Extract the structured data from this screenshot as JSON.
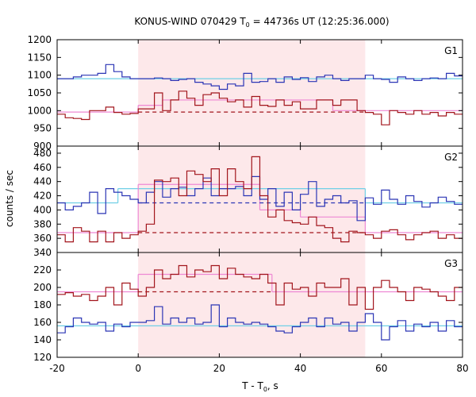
{
  "chart_data": {
    "type": "line",
    "title": "KONUS-WIND 070429 T",
    "title_sub": "0",
    "title_rest": " = 44736s UT (12:25:36.000)",
    "xlabel_main": "T - T",
    "xlabel_sub": "0",
    "xlabel_rest": ", s",
    "ylabel": "counts / sec",
    "xlim": [
      -20,
      80
    ],
    "x_ticks": [
      "-20",
      "0",
      "20",
      "40",
      "60",
      "80"
    ],
    "x_tick_values": [
      -20,
      0,
      20,
      40,
      60,
      80
    ],
    "shaded_interval": [
      0,
      56
    ],
    "colors": {
      "shade": "#fde8ea",
      "blue": "#2b35b5",
      "darkred": "#a2151c",
      "cyan": "#6fcfe6",
      "pink": "#ee88d4"
    },
    "panels": [
      {
        "label": "G1",
        "ylim": [
          900,
          1200
        ],
        "y_ticks": [
          900,
          950,
          1000,
          1050,
          1100,
          1150,
          1200
        ],
        "y_tick_labels": [
          "900",
          "950",
          "1000",
          "1050",
          "1100",
          "1150",
          "1200"
        ],
        "series": [
          {
            "color": "blue",
            "step_x0": -20,
            "step_dx": 2,
            "values": [
              1090,
              1090,
              1095,
              1100,
              1100,
              1105,
              1130,
              1110,
              1095,
              1090,
              1090,
              1090,
              1092,
              1090,
              1085,
              1088,
              1090,
              1080,
              1075,
              1070,
              1060,
              1075,
              1070,
              1105,
              1080,
              1082,
              1090,
              1080,
              1095,
              1088,
              1093,
              1082,
              1095,
              1100,
              1090,
              1085,
              1090,
              1090,
              1100,
              1090,
              1088,
              1080,
              1095,
              1090,
              1085,
              1090,
              1092,
              1090,
              1105,
              1098
            ]
          },
          {
            "color": "darkred",
            "step_x0": -20,
            "step_dx": 2,
            "values": [
              990,
              980,
              978,
              975,
              1000,
              1000,
              1010,
              995,
              990,
              992,
              1005,
              1005,
              1050,
              1000,
              1030,
              1055,
              1035,
              1015,
              1045,
              1050,
              1035,
              1025,
              1030,
              1010,
              1040,
              1015,
              1012,
              1030,
              1015,
              1025,
              1005,
              1005,
              1030,
              1030,
              1015,
              1030,
              1030,
              1000,
              995,
              990,
              960,
              1000,
              995,
              990,
              1000,
              990,
              995,
              985,
              995,
              990
            ]
          }
        ],
        "fits": [
          {
            "color": "cyan",
            "style": "solid",
            "segments": [
              [
                -20,
                80,
                1090
              ]
            ]
          },
          {
            "color": "pink",
            "style": "solid",
            "segments": [
              [
                -20,
                0,
                996
              ],
              [
                0,
                6,
                1015
              ],
              [
                6,
                48,
                1030
              ],
              [
                48,
                80,
                1000
              ]
            ]
          },
          {
            "color": "darkred",
            "style": "dashed",
            "segments": [
              [
                0,
                56,
                996
              ]
            ]
          }
        ]
      },
      {
        "label": "G2",
        "ylim": [
          340,
          490
        ],
        "y_ticks": [
          340,
          360,
          380,
          400,
          420,
          440,
          460,
          480
        ],
        "y_tick_labels": [
          "340",
          "360",
          "380",
          "400",
          "420",
          "440",
          "460",
          "480"
        ],
        "series": [
          {
            "color": "blue",
            "step_x0": -20,
            "step_dx": 2,
            "values": [
              410,
              400,
              405,
              410,
              425,
              395,
              430,
              425,
              420,
              415,
              410,
              425,
              440,
              418,
              430,
              432,
              420,
              430,
              445,
              420,
              430,
              430,
              433,
              420,
              447,
              415,
              430,
              405,
              425,
              400,
              422,
              440,
              405,
              415,
              420,
              410,
              413,
              385,
              417,
              408,
              428,
              415,
              408,
              420,
              412,
              404,
              410,
              418,
              412,
              408
            ]
          },
          {
            "color": "darkred",
            "step_x0": -20,
            "step_dx": 2,
            "values": [
              365,
              355,
              375,
              370,
              355,
              370,
              355,
              368,
              360,
              365,
              370,
              380,
              442,
              440,
              445,
              420,
              455,
              450,
              440,
              458,
              420,
              458,
              440,
              430,
              475,
              420,
              390,
              400,
              385,
              382,
              380,
              390,
              378,
              375,
              360,
              355,
              370,
              368,
              365,
              360,
              370,
              372,
              365,
              358,
              365,
              368,
              370,
              360,
              365,
              360
            ]
          }
        ],
        "fits": [
          {
            "color": "cyan",
            "style": "solid",
            "segments": [
              [
                -20,
                -5,
                410
              ],
              [
                -5,
                56,
                430
              ],
              [
                56,
                80,
                410
              ]
            ]
          },
          {
            "color": "pink",
            "style": "solid",
            "segments": [
              [
                -20,
                0,
                368
              ],
              [
                0,
                30,
                436
              ],
              [
                30,
                40,
                400
              ],
              [
                40,
                56,
                390
              ],
              [
                56,
                80,
                368
              ]
            ]
          },
          {
            "color": "blue",
            "style": "dashed",
            "segments": [
              [
                0,
                56,
                410
              ]
            ]
          },
          {
            "color": "darkred",
            "style": "dashed",
            "segments": [
              [
                0,
                56,
                368
              ]
            ]
          }
        ]
      },
      {
        "label": "G3",
        "ylim": [
          120,
          240
        ],
        "y_ticks": [
          120,
          140,
          160,
          180,
          200,
          220
        ],
        "y_tick_labels": [
          "120",
          "140",
          "160",
          "180",
          "200",
          "220"
        ],
        "series": [
          {
            "color": "blue",
            "step_x0": -20,
            "step_dx": 2,
            "values": [
              148,
              155,
              165,
              160,
              158,
              160,
              150,
              158,
              155,
              160,
              160,
              162,
              178,
              158,
              165,
              160,
              165,
              158,
              160,
              180,
              155,
              165,
              160,
              158,
              160,
              158,
              155,
              150,
              148,
              155,
              160,
              165,
              155,
              165,
              158,
              160,
              150,
              160,
              170,
              160,
              140,
              155,
              162,
              150,
              158,
              155,
              160,
              150,
              162,
              155
            ]
          },
          {
            "color": "darkred",
            "step_x0": -20,
            "step_dx": 2,
            "values": [
              192,
              194,
              190,
              192,
              185,
              190,
              200,
              180,
              205,
              198,
              190,
              200,
              220,
              210,
              215,
              225,
              212,
              220,
              218,
              225,
              210,
              222,
              215,
              212,
              210,
              215,
              205,
              180,
              205,
              198,
              200,
              190,
              205,
              200,
              200,
              210,
              180,
              200,
              175,
              200,
              208,
              200,
              195,
              185,
              200,
              198,
              195,
              190,
              185,
              200
            ]
          }
        ],
        "fits": [
          {
            "color": "cyan",
            "style": "solid",
            "segments": [
              [
                -20,
                80,
                156
              ]
            ]
          },
          {
            "color": "pink",
            "style": "solid",
            "segments": [
              [
                -20,
                0,
                195
              ],
              [
                0,
                33,
                215
              ],
              [
                33,
                56,
                195
              ],
              [
                56,
                80,
                195
              ]
            ]
          },
          {
            "color": "darkred",
            "style": "dashed",
            "segments": [
              [
                0,
                33,
                195
              ]
            ]
          }
        ]
      }
    ]
  }
}
